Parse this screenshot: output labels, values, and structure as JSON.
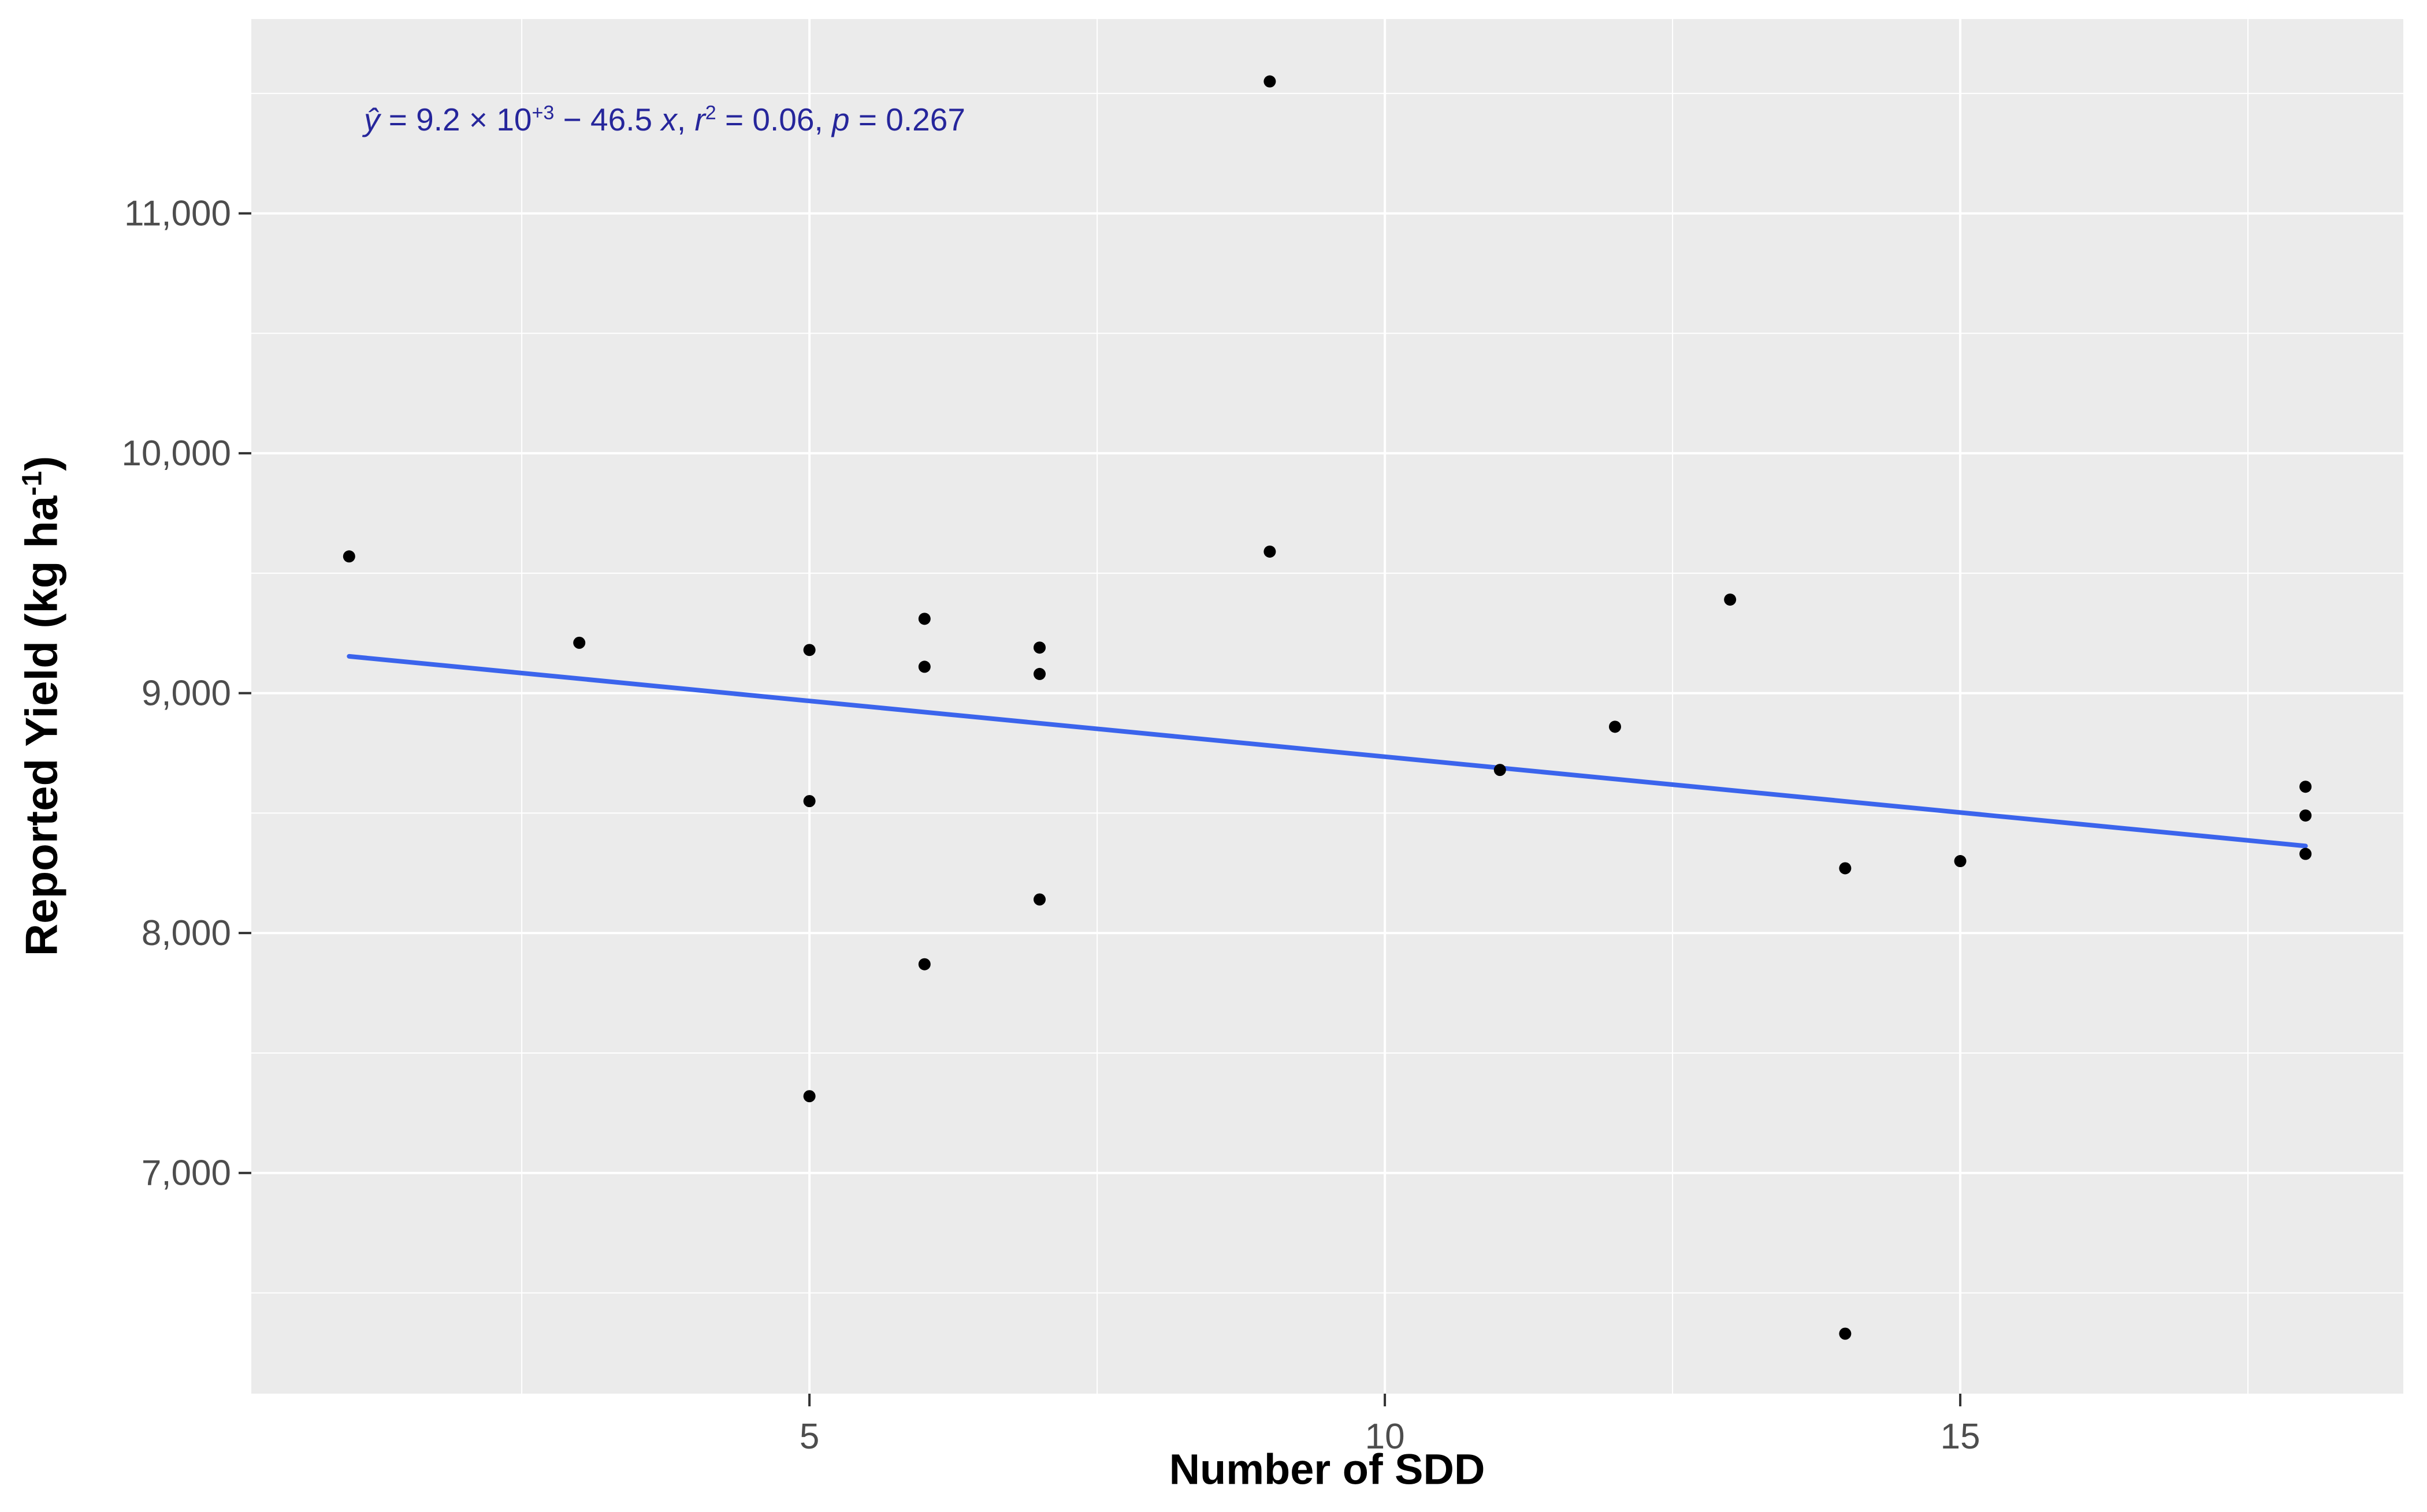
{
  "page": {
    "background": "#FFFFFF"
  },
  "chart_data": {
    "type": "scatter",
    "title": "",
    "xlabel": "Number of SDD",
    "ylabel": "Reported Yield (kg ha⁻¹)",
    "ylabel_parts": {
      "main": "Reported Yield (kg ha",
      "sup": "-1",
      "close": ")"
    },
    "equation_text": "ŷ = 9.2 × 10⁺³ − 46.5 x, r² = 0.06, p = 0.267",
    "equation_parts": [
      {
        "t": "ŷ",
        "k": "i"
      },
      {
        "t": " = 9.2 × 10",
        "k": "n"
      },
      {
        "t": "+3",
        "k": "s"
      },
      {
        "t": " − 46.5 ",
        "k": "n"
      },
      {
        "t": "x",
        "k": "i"
      },
      {
        "t": ", ",
        "k": "n"
      },
      {
        "t": "r",
        "k": "i"
      },
      {
        "t": "2",
        "k": "s"
      },
      {
        "t": " = 0.06, ",
        "k": "n"
      },
      {
        "t": "p",
        "k": "i"
      },
      {
        "t": " = 0.267",
        "k": "n"
      }
    ],
    "x_ticks": [
      {
        "v": 5,
        "label": "5"
      },
      {
        "v": 10,
        "label": "10"
      },
      {
        "v": 15,
        "label": "15"
      }
    ],
    "y_ticks": [
      {
        "v": 7000,
        "label": "7,000"
      },
      {
        "v": 8000,
        "label": "8,000"
      },
      {
        "v": 9000,
        "label": "9,000"
      },
      {
        "v": 10000,
        "label": "10,000"
      },
      {
        "v": 11000,
        "label": "11,000"
      }
    ],
    "x_minor_breaks": [
      2.5,
      7.5,
      12.5,
      17.5
    ],
    "y_minor_breaks": [
      6500,
      7500,
      8500,
      9500,
      10500,
      11500
    ],
    "xlim": [
      0.15,
      18.85
    ],
    "ylim": [
      6080,
      11810
    ],
    "grid": true,
    "legend_position": "none",
    "points": [
      [
        1,
        9570
      ],
      [
        3,
        9210
      ],
      [
        5,
        9180
      ],
      [
        5,
        8550
      ],
      [
        5,
        7320
      ],
      [
        6,
        9310
      ],
      [
        6,
        9110
      ],
      [
        6,
        7870
      ],
      [
        7,
        9190
      ],
      [
        7,
        9080
      ],
      [
        7,
        8140
      ],
      [
        9,
        11550
      ],
      [
        9,
        9590
      ],
      [
        11,
        8680
      ],
      [
        12,
        8860
      ],
      [
        13,
        9390
      ],
      [
        14,
        8270
      ],
      [
        14,
        6330
      ],
      [
        15,
        8300
      ],
      [
        18,
        8610
      ],
      [
        18,
        8490
      ],
      [
        18,
        8330
      ]
    ],
    "regression_line": {
      "intercept": 9200,
      "slope": -46.5,
      "x_start": 1,
      "x_end": 18,
      "r2": 0.06,
      "p": 0.267
    },
    "colors": {
      "panel": "#EBEBEB",
      "grid": "#FFFFFF",
      "point": "#000000",
      "regression": "#3B64EC",
      "equation": "#26269B",
      "tick_label": "#4D4D4D",
      "axis_title": "#000000",
      "tick_mark": "#333333"
    }
  }
}
